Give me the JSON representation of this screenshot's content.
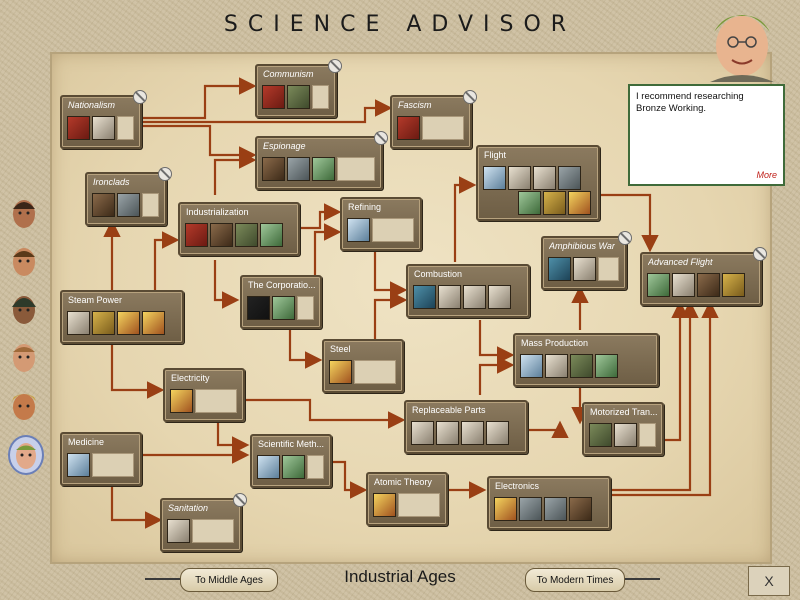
{
  "window": {
    "title": "SCIENCE ADVISOR"
  },
  "advisor": {
    "message": "I recommend researching Bronze Working.",
    "more_label": "More"
  },
  "colors": {
    "arrow": "#9a3f14",
    "panel": "#7e6d52",
    "advisor_border": "#3f6b3a",
    "more_link": "#c0201a"
  },
  "techs": [
    {
      "id": "nationalism",
      "name": "Nationalism",
      "italic": true,
      "no_icon": true,
      "icons": [
        "flag-icon",
        "soldier-icon"
      ]
    },
    {
      "id": "communism",
      "name": "Communism",
      "italic": true,
      "no_icon": true,
      "icons": [
        "hammer-sickle-icon",
        "building-icon"
      ]
    },
    {
      "id": "fascism",
      "name": "Fascism",
      "italic": true,
      "no_icon": true,
      "icons": [
        "fascism-leader-icon"
      ]
    },
    {
      "id": "espionage",
      "name": "Espionage",
      "italic": true,
      "no_icon": true,
      "icons": [
        "spy-icon",
        "hq-icon",
        "map-icon"
      ]
    },
    {
      "id": "ironclads",
      "name": "Ironclads",
      "italic": true,
      "no_icon": true,
      "icons": [
        "ship-wheel-icon",
        "ironclad-icon"
      ]
    },
    {
      "id": "industrialization",
      "name": "Industrialization",
      "italic": false,
      "no_icon": false,
      "icons": [
        "factory-icon",
        "plant-icon",
        "railroad-icon",
        "mine-icon"
      ]
    },
    {
      "id": "refining",
      "name": "Refining",
      "italic": false,
      "no_icon": false,
      "icons": [
        "refinery-icon"
      ]
    },
    {
      "id": "flight",
      "name": "Flight",
      "italic": false,
      "no_icon": false,
      "icons": [
        "plane-icon",
        "fighter-icon",
        "bomber-icon",
        "aa-gun-icon",
        "tower-icon",
        "wonder-icon",
        "no-icon"
      ]
    },
    {
      "id": "amphibious-war",
      "name": "Amphibious War",
      "italic": true,
      "no_icon": true,
      "icons": [
        "marine-ship-icon",
        "marine-icon"
      ]
    },
    {
      "id": "advanced-flight",
      "name": "Advanced Flight",
      "italic": true,
      "no_icon": true,
      "icons": [
        "radar-icon",
        "jet-icon",
        "paratrooper-icon",
        "coin-icon"
      ]
    },
    {
      "id": "steam-power",
      "name": "Steam Power",
      "italic": false,
      "no_icon": false,
      "icons": [
        "engine-icon",
        "gold-icon",
        "no-horse-icon",
        "no-ship-icon"
      ]
    },
    {
      "id": "corporation",
      "name": "The Corporatio...",
      "italic": false,
      "no_icon": false,
      "icons": [
        "corporation-icon",
        "tower-icon"
      ]
    },
    {
      "id": "combustion",
      "name": "Combustion",
      "italic": false,
      "no_icon": false,
      "icons": [
        "engine-glow-icon",
        "destroyer-icon",
        "battleship-icon",
        "submarine-icon"
      ]
    },
    {
      "id": "steel",
      "name": "Steel",
      "italic": false,
      "no_icon": false,
      "icons": [
        "steel-icon"
      ]
    },
    {
      "id": "mass-production",
      "name": "Mass Production",
      "italic": false,
      "no_icon": false,
      "icons": [
        "carrier-icon",
        "sub-icon",
        "mass-transit-icon",
        "farm-icon"
      ]
    },
    {
      "id": "electricity",
      "name": "Electricity",
      "italic": false,
      "no_icon": false,
      "icons": [
        "torch-icon"
      ]
    },
    {
      "id": "replaceable-parts",
      "name": "Replaceable Parts",
      "italic": false,
      "no_icon": false,
      "icons": [
        "gear-icon",
        "infantry-icon",
        "artillery-icon",
        "rifleman-icon"
      ]
    },
    {
      "id": "motorized-transport",
      "name": "Motorized Tran...",
      "italic": false,
      "no_icon": false,
      "icons": [
        "tank-icon",
        "tank2-icon"
      ]
    },
    {
      "id": "medicine",
      "name": "Medicine",
      "italic": false,
      "no_icon": false,
      "icons": [
        "pill-icon"
      ]
    },
    {
      "id": "scientific-method",
      "name": "Scientific Meth...",
      "italic": false,
      "no_icon": false,
      "icons": [
        "light-icon",
        "palm-icon"
      ]
    },
    {
      "id": "atomic-theory",
      "name": "Atomic Theory",
      "italic": false,
      "no_icon": false,
      "icons": [
        "atom-icon"
      ]
    },
    {
      "id": "electronics",
      "name": "Electronics",
      "italic": false,
      "no_icon": false,
      "icons": [
        "plasma-icon",
        "factory2-icon",
        "dam-icon",
        "station-icon"
      ]
    },
    {
      "id": "sanitation",
      "name": "Sanitation",
      "italic": true,
      "no_icon": true,
      "icons": [
        "sewer-icon"
      ]
    }
  ],
  "advisors": [
    {
      "name": "military-advisor-portrait"
    },
    {
      "name": "foreign-advisor-portrait"
    },
    {
      "name": "trade-advisor-portrait"
    },
    {
      "name": "domestic-advisor-portrait"
    },
    {
      "name": "cultural-advisor-portrait"
    },
    {
      "name": "science-advisor-portrait",
      "selected": true
    }
  ],
  "footer": {
    "prev_era": "To Middle Ages",
    "era": "Industrial Ages",
    "next_era": "To Modern Times",
    "close": "X"
  }
}
